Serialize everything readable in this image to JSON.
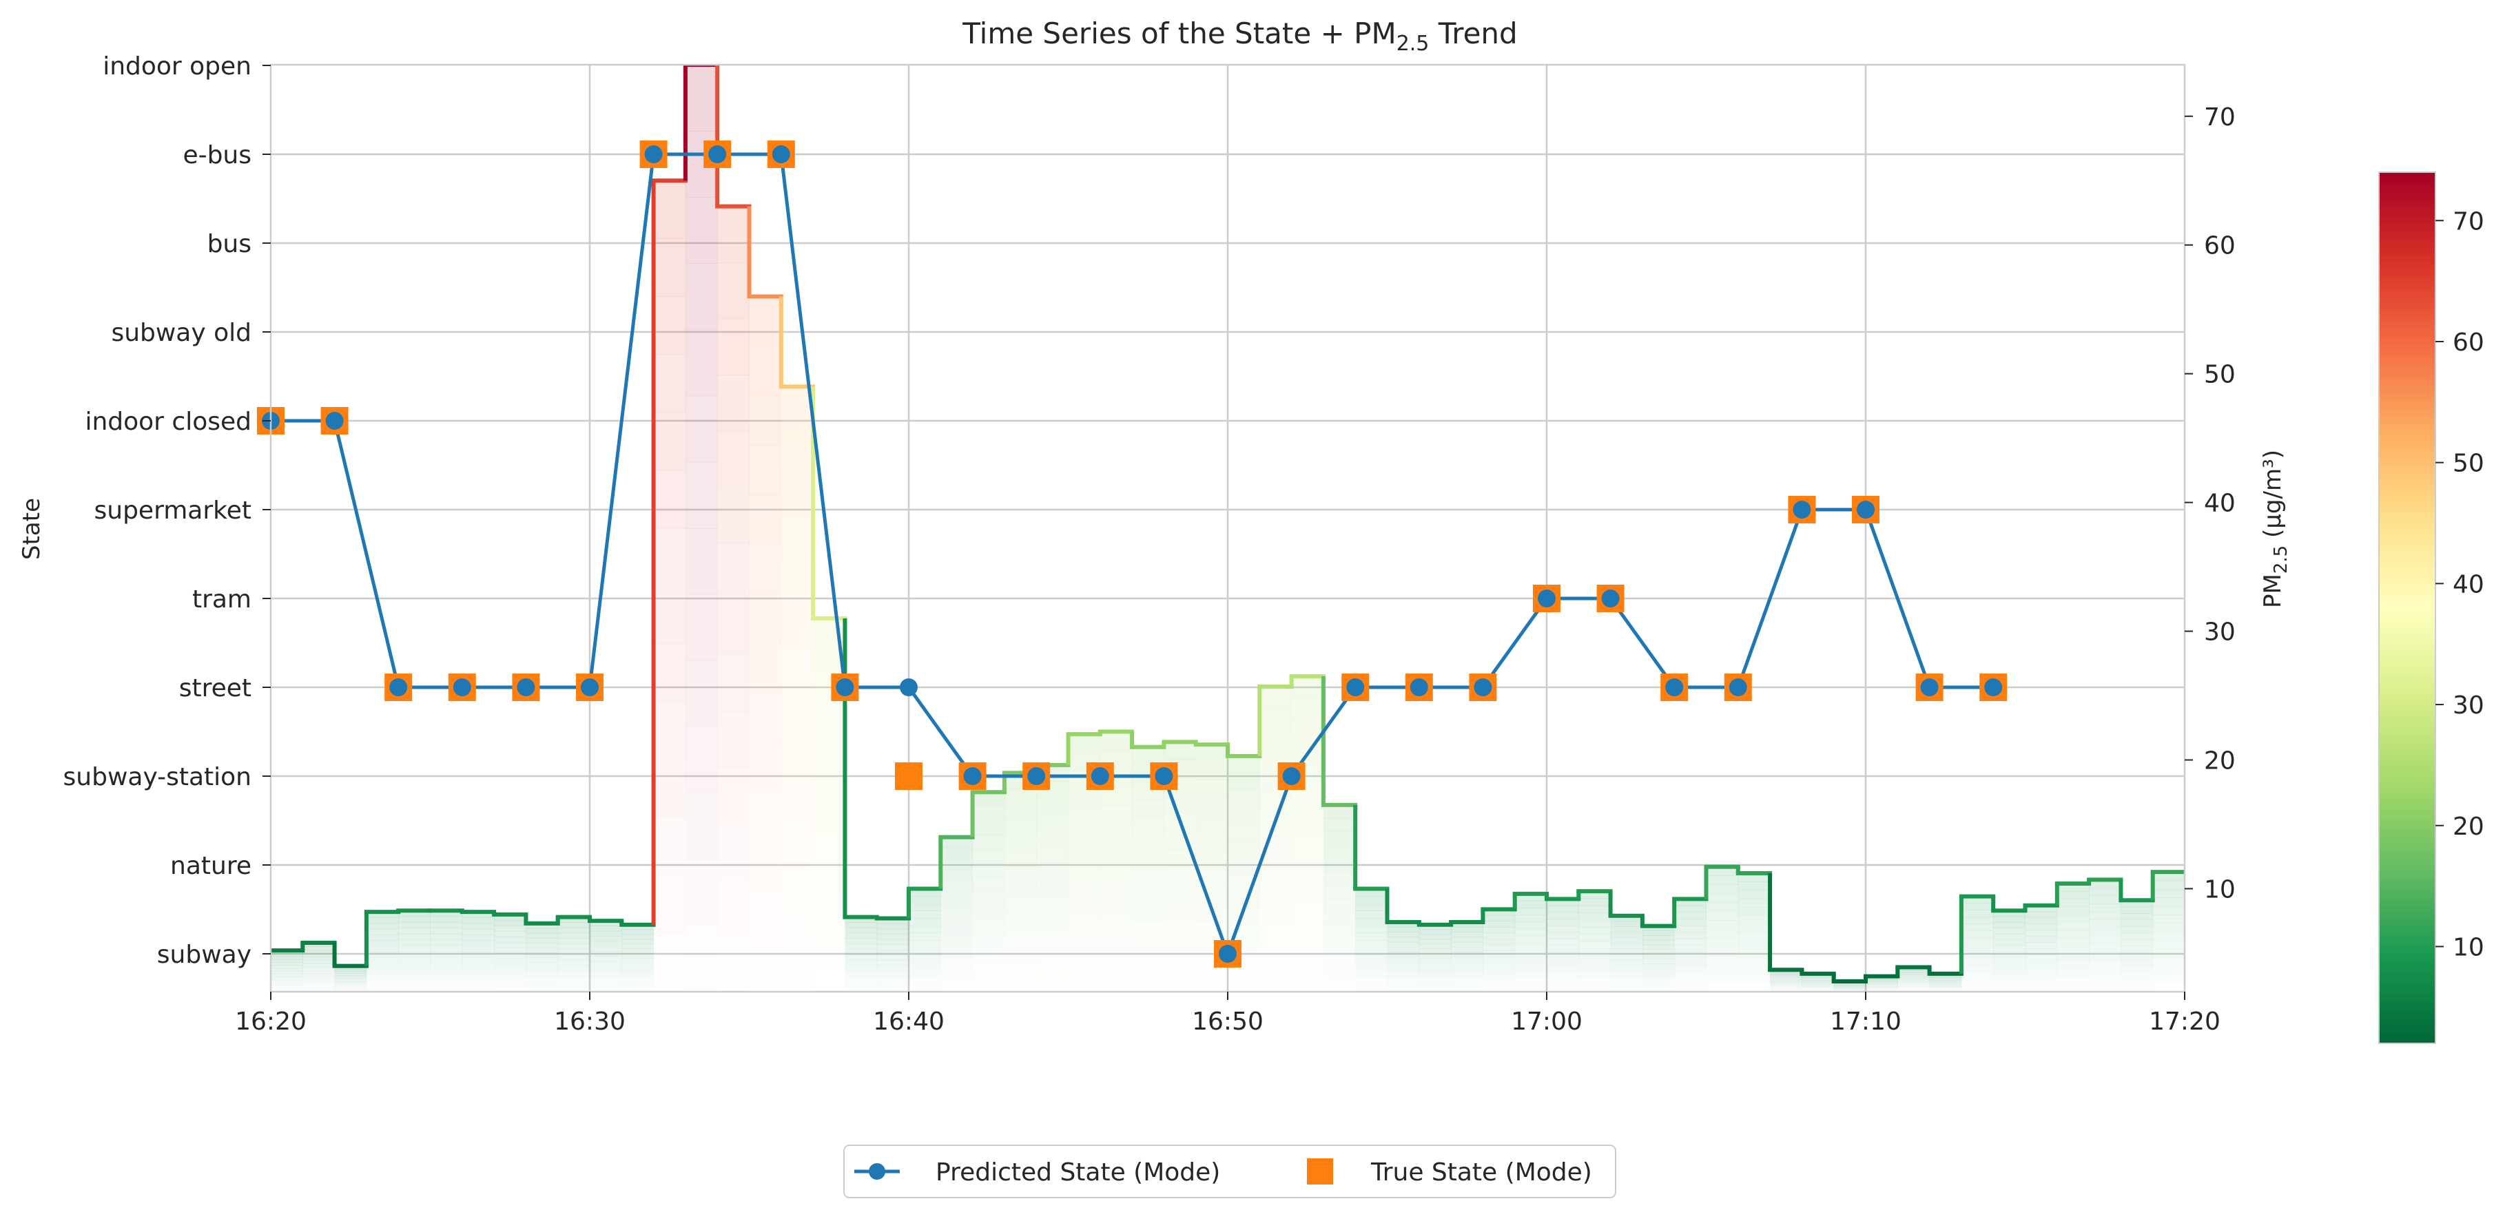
{
  "chart_data": {
    "type": "line",
    "title": "Time Series of the State + PM",
    "title_sub": "2.5",
    "title_suffix": " Trend",
    "ylabel_left": "State",
    "ylabel_right_main": "PM",
    "ylabel_right_sub": "2.5",
    "ylabel_right_unit": " (µg/m³)",
    "x_ticks": [
      "16:20",
      "16:30",
      "16:40",
      "16:50",
      "17:00",
      "17:10",
      "17:20"
    ],
    "x_range_minutes": [
      0,
      60
    ],
    "states": [
      "subway",
      "nature",
      "subway-station",
      "street",
      "tram",
      "supermarket",
      "indoor closed",
      "subway old",
      "bus",
      "e-bus",
      "indoor open"
    ],
    "pm_axis": {
      "ylim": [
        2,
        74
      ],
      "ticks": [
        10,
        20,
        30,
        40,
        50,
        60,
        70
      ]
    },
    "colorbar": {
      "vmin": 2,
      "vmax": 74,
      "ticks": [
        10,
        20,
        30,
        40,
        50,
        60,
        70
      ],
      "colormap": "RdYlGn_r"
    },
    "grid": true,
    "legend_position": "bottom-center",
    "series": [
      {
        "name": "Predicted State (Mode)",
        "color": "#1f77b4",
        "marker": "circle",
        "x_minutes": [
          0,
          2,
          4,
          6,
          8,
          10,
          12,
          14,
          16,
          18,
          20,
          22,
          24,
          26,
          28,
          30,
          32,
          34,
          36,
          38,
          40,
          42,
          44,
          46,
          48,
          50,
          52,
          54
        ],
        "states": [
          "indoor closed",
          "indoor closed",
          "street",
          "street",
          "street",
          "street",
          "e-bus",
          "e-bus",
          "e-bus",
          "street",
          "street",
          "subway-station",
          "subway-station",
          "subway-station",
          "subway-station",
          "subway",
          "subway-station",
          "street",
          "street",
          "street",
          "tram",
          "tram",
          "street",
          "street",
          "supermarket",
          "supermarket",
          "street",
          "street"
        ]
      },
      {
        "name": "True State (Mode)",
        "color": "#ff7f0e",
        "marker": "square",
        "x_minutes": [
          0,
          2,
          4,
          6,
          8,
          10,
          12,
          14,
          16,
          18,
          20,
          22,
          24,
          26,
          28,
          30,
          32,
          34,
          36,
          38,
          40,
          42,
          44,
          46,
          48,
          50,
          52,
          54
        ],
        "states": [
          "indoor closed",
          "indoor closed",
          "street",
          "street",
          "street",
          "street",
          "e-bus",
          "e-bus",
          "e-bus",
          "street",
          "subway-station",
          "subway-station",
          "subway-station",
          "subway-station",
          "subway-station",
          "subway",
          "subway-station",
          "street",
          "street",
          "street",
          "tram",
          "tram",
          "street",
          "street",
          "supermarket",
          "supermarket",
          "street",
          "street"
        ]
      },
      {
        "name": "PM2.5",
        "type": "step",
        "x_minutes": [
          0,
          1,
          2,
          3,
          4,
          5,
          6,
          7,
          8,
          9,
          10,
          11,
          12,
          13,
          14,
          15,
          16,
          17,
          18,
          19,
          20,
          21,
          22,
          23,
          24,
          25,
          26,
          27,
          28,
          29,
          30,
          31,
          32,
          33,
          34,
          35,
          36,
          37,
          38,
          39,
          40,
          41,
          42,
          43,
          44,
          45,
          46,
          47,
          48,
          49,
          50,
          51,
          52,
          53,
          54,
          55,
          56,
          57,
          58,
          59
        ],
        "values": [
          5.2,
          5.8,
          4.0,
          8.2,
          8.3,
          8.3,
          8.2,
          8.0,
          7.3,
          7.8,
          7.5,
          7.2,
          65,
          74,
          63,
          56,
          49,
          31,
          7.8,
          7.7,
          10,
          14,
          17.5,
          19,
          19.6,
          22,
          22.2,
          21,
          21.4,
          21.2,
          20.3,
          25.7,
          26.5,
          16.5,
          10,
          7.4,
          7.2,
          7.4,
          8.4,
          9.6,
          9.2,
          9.8,
          7.9,
          7.1,
          9.2,
          11.7,
          11.2,
          3.7,
          3.4,
          2.8,
          3.2,
          3.9,
          3.4,
          9.4,
          8.3,
          8.7,
          10.4,
          10.7,
          9.1,
          11.3
        ]
      }
    ]
  },
  "legend": {
    "predicted_label": "Predicted State (Mode)",
    "true_label": "True State (Mode)"
  }
}
